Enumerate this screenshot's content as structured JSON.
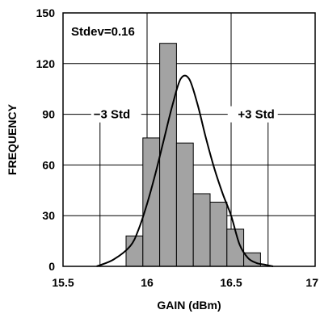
{
  "chart_data": {
    "type": "bar",
    "title": "",
    "xlabel": "GAIN (dBm)",
    "ylabel": "FREQUENCY",
    "xlim": [
      15.5,
      17
    ],
    "ylim": [
      0,
      150
    ],
    "x_ticks": [
      15.5,
      16,
      16.5,
      17
    ],
    "x_tick_labels": [
      "15.5",
      "16",
      "16.5",
      "17"
    ],
    "y_ticks": [
      0,
      30,
      60,
      90,
      120,
      150
    ],
    "y_tick_labels": [
      "0",
      "30",
      "60",
      "90",
      "120",
      "150"
    ],
    "grid": true,
    "legend": "none",
    "bins": [
      {
        "x0": 15.875,
        "x1": 15.975,
        "value": 18
      },
      {
        "x0": 15.975,
        "x1": 16.075,
        "value": 76
      },
      {
        "x0": 16.075,
        "x1": 16.175,
        "value": 132
      },
      {
        "x0": 16.175,
        "x1": 16.275,
        "value": 73
      },
      {
        "x0": 16.275,
        "x1": 16.375,
        "value": 43
      },
      {
        "x0": 16.375,
        "x1": 16.475,
        "value": 38
      },
      {
        "x0": 16.475,
        "x1": 16.575,
        "value": 22
      },
      {
        "x0": 16.575,
        "x1": 16.675,
        "value": 8
      }
    ],
    "fit_curve": {
      "x": [
        15.7,
        15.8,
        15.9,
        15.95,
        16.0,
        16.05,
        16.1,
        16.15,
        16.2,
        16.25,
        16.3,
        16.35,
        16.4,
        16.45,
        16.5,
        16.55,
        16.6,
        16.65,
        16.7,
        16.75
      ],
      "y": [
        0,
        4,
        12,
        22,
        37,
        55,
        75,
        95,
        111,
        111,
        96,
        76,
        58,
        43,
        30,
        13,
        5,
        2,
        1,
        0
      ]
    },
    "std_lines": [
      {
        "x": 15.72,
        "label": "−3 Std"
      },
      {
        "x": 16.72,
        "label": "+3 Std"
      }
    ],
    "std_label_y": 90,
    "annotation": "Stdev=0.16",
    "colors": {
      "bar_fill": "#a3a3a3",
      "line": "#000000",
      "grid": "#000000",
      "background": "#ffffff"
    }
  }
}
